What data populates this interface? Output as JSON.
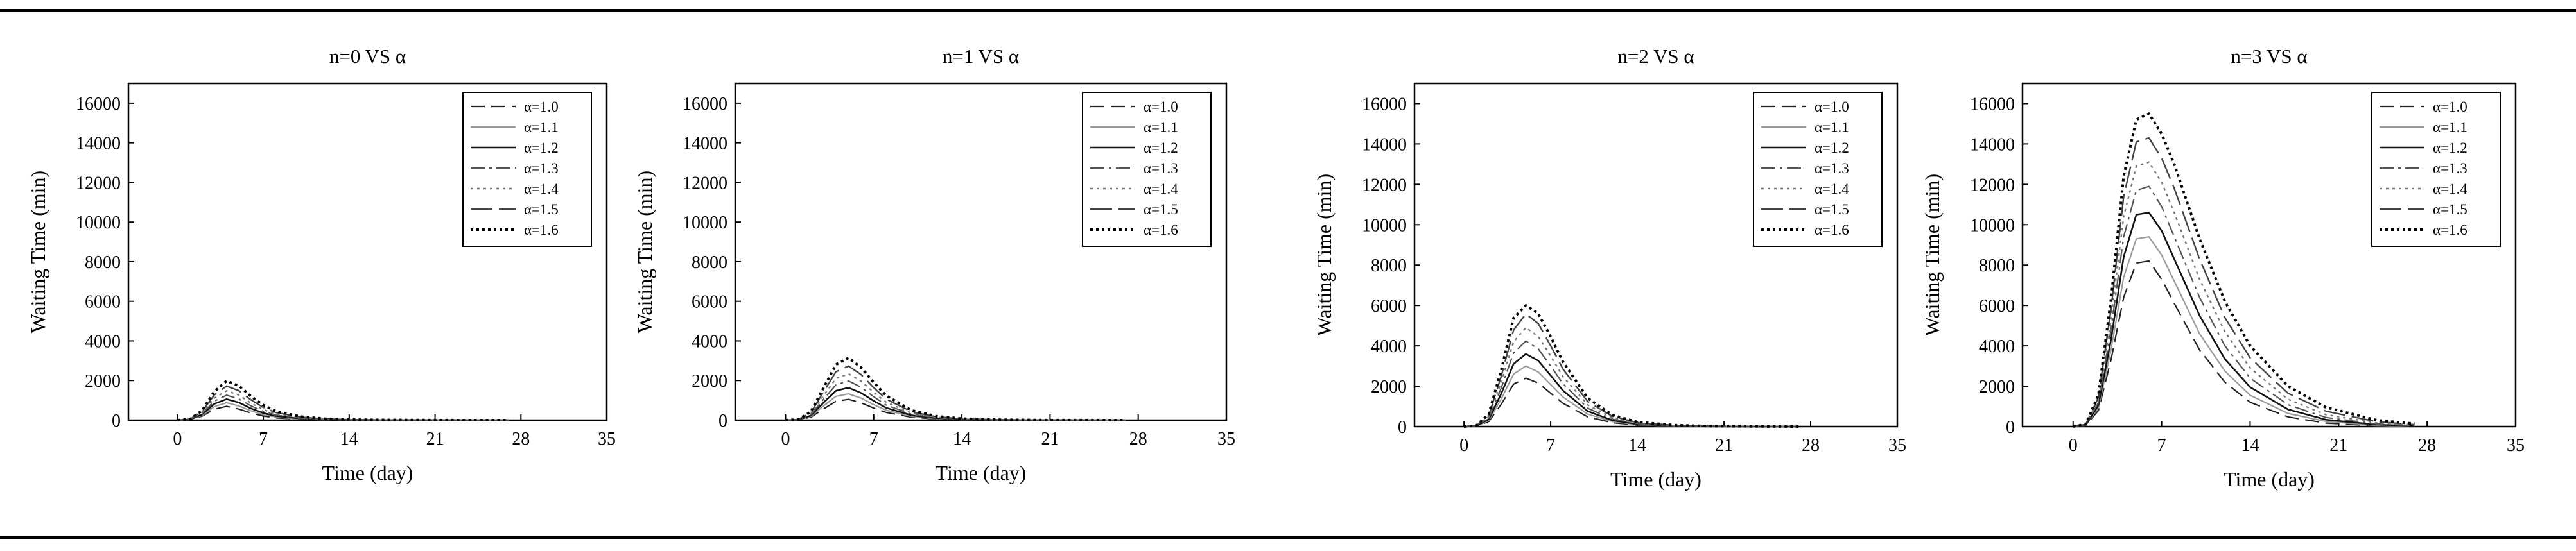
{
  "figure": {
    "panel_titles": [
      "n=0 VS α",
      "n=1 VS α",
      "n=2 VS α",
      "n=3 VS α"
    ],
    "xlabel": "Time (day)",
    "ylabel": "Waiting Time (min)"
  },
  "chart_data": [
    {
      "type": "line",
      "title": "n=0 VS α",
      "xlabel": "Time (day)",
      "ylabel": "Waiting Time (min)",
      "xlim": [
        -4,
        35
      ],
      "ylim": [
        0,
        17000
      ],
      "xticks": [
        0,
        7,
        14,
        21,
        28,
        35
      ],
      "yticks": [
        0,
        2000,
        4000,
        6000,
        8000,
        10000,
        12000,
        14000,
        16000
      ],
      "grid": false,
      "legend": "top-right",
      "x": [
        0,
        1,
        2,
        3,
        4,
        5,
        6,
        7,
        8,
        10,
        12,
        14,
        17,
        20,
        24,
        27
      ],
      "series": [
        {
          "name": "α=1.0",
          "values": [
            0,
            20,
            200,
            550,
            700,
            560,
            360,
            210,
            120,
            45,
            18,
            8,
            3,
            1,
            0,
            0
          ]
        },
        {
          "name": "α=1.1",
          "values": [
            0,
            25,
            240,
            680,
            880,
            720,
            470,
            280,
            160,
            60,
            24,
            10,
            4,
            1,
            0,
            0
          ]
        },
        {
          "name": "α=1.2",
          "values": [
            0,
            30,
            290,
            820,
            1060,
            890,
            590,
            360,
            210,
            80,
            32,
            14,
            5,
            2,
            0,
            0
          ]
        },
        {
          "name": "α=1.3",
          "values": [
            0,
            35,
            330,
            960,
            1260,
            1070,
            720,
            440,
            260,
            100,
            42,
            18,
            7,
            2,
            0,
            0
          ]
        },
        {
          "name": "α=1.4",
          "values": [
            0,
            40,
            380,
            1110,
            1480,
            1270,
            860,
            530,
            320,
            125,
            52,
            23,
            9,
            3,
            1,
            0
          ]
        },
        {
          "name": "α=1.5",
          "values": [
            0,
            45,
            430,
            1270,
            1720,
            1490,
            1020,
            640,
            390,
            155,
            65,
            28,
            11,
            4,
            1,
            0
          ]
        },
        {
          "name": "α=1.6",
          "values": [
            0,
            50,
            480,
            1440,
            1980,
            1740,
            1200,
            760,
            460,
            185,
            78,
            34,
            14,
            5,
            1,
            0
          ]
        }
      ]
    },
    {
      "type": "line",
      "title": "n=1 VS α",
      "xlabel": "Time (day)",
      "ylabel": "Waiting Time (min)",
      "xlim": [
        -4,
        35
      ],
      "ylim": [
        0,
        17000
      ],
      "xticks": [
        0,
        7,
        14,
        21,
        28,
        35
      ],
      "yticks": [
        0,
        2000,
        4000,
        6000,
        8000,
        10000,
        12000,
        14000,
        16000
      ],
      "grid": false,
      "legend": "top-right",
      "x": [
        0,
        1,
        2,
        3,
        4,
        5,
        6,
        7,
        8,
        10,
        12,
        14,
        17,
        20,
        24,
        27
      ],
      "series": [
        {
          "name": "α=1.0",
          "values": [
            0,
            15,
            150,
            560,
            950,
            1050,
            870,
            610,
            390,
            150,
            58,
            23,
            7,
            2,
            0,
            0
          ]
        },
        {
          "name": "α=1.1",
          "values": [
            0,
            18,
            190,
            710,
            1200,
            1330,
            1110,
            780,
            500,
            195,
            76,
            30,
            9,
            3,
            1,
            0
          ]
        },
        {
          "name": "α=1.2",
          "values": [
            0,
            22,
            230,
            870,
            1480,
            1640,
            1370,
            970,
            620,
            245,
            96,
            38,
            12,
            4,
            1,
            0
          ]
        },
        {
          "name": "α=1.3",
          "values": [
            0,
            26,
            275,
            1040,
            1780,
            1980,
            1660,
            1180,
            760,
            300,
            118,
            47,
            15,
            5,
            1,
            0
          ]
        },
        {
          "name": "α=1.4",
          "values": [
            0,
            30,
            320,
            1220,
            2100,
            2340,
            1970,
            1400,
            900,
            360,
            142,
            57,
            18,
            6,
            1,
            0
          ]
        },
        {
          "name": "α=1.5",
          "values": [
            0,
            34,
            370,
            1410,
            2440,
            2730,
            2300,
            1640,
            1060,
            425,
            168,
            68,
            22,
            7,
            1,
            0
          ]
        },
        {
          "name": "α=1.6",
          "values": [
            0,
            38,
            420,
            1610,
            2800,
            3140,
            2660,
            1900,
            1230,
            495,
            196,
            80,
            26,
            8,
            2,
            0
          ]
        }
      ]
    },
    {
      "type": "line",
      "title": "n=2 VS α",
      "xlabel": "Time (day)",
      "ylabel": "Waiting Time (min)",
      "xlim": [
        -4,
        35
      ],
      "ylim": [
        0,
        17000
      ],
      "xticks": [
        0,
        7,
        14,
        21,
        28,
        35
      ],
      "yticks": [
        0,
        2000,
        4000,
        6000,
        8000,
        10000,
        12000,
        14000,
        16000
      ],
      "grid": false,
      "legend": "top-right",
      "x": [
        0,
        1,
        2,
        3,
        4,
        5,
        6,
        7,
        8,
        10,
        12,
        14,
        17,
        20,
        24,
        27
      ],
      "series": [
        {
          "name": "α=1.0",
          "values": [
            0,
            20,
            250,
            1100,
            2100,
            2400,
            2150,
            1650,
            1150,
            480,
            190,
            75,
            22,
            6,
            1,
            0
          ]
        },
        {
          "name": "α=1.1",
          "values": [
            0,
            25,
            305,
            1360,
            2600,
            3000,
            2700,
            2080,
            1460,
            620,
            245,
            97,
            29,
            8,
            2,
            0
          ]
        },
        {
          "name": "α=1.2",
          "values": [
            0,
            30,
            365,
            1620,
            3100,
            3600,
            3260,
            2530,
            1780,
            760,
            305,
            120,
            36,
            10,
            2,
            0
          ]
        },
        {
          "name": "α=1.3",
          "values": [
            0,
            35,
            425,
            1900,
            3640,
            4240,
            3850,
            3000,
            2120,
            910,
            365,
            145,
            44,
            12,
            3,
            1
          ]
        },
        {
          "name": "α=1.4",
          "values": [
            0,
            40,
            490,
            2180,
            4200,
            4900,
            4460,
            3490,
            2470,
            1070,
            430,
            172,
            52,
            15,
            3,
            1
          ]
        },
        {
          "name": "α=1.5",
          "values": [
            0,
            45,
            555,
            2480,
            4780,
            5580,
            5100,
            4000,
            2840,
            1235,
            500,
            200,
            61,
            17,
            4,
            1
          ]
        },
        {
          "name": "α=1.6",
          "values": [
            0,
            50,
            625,
            2790,
            5380,
            6000,
            5600,
            4450,
            3200,
            1400,
            570,
            230,
            70,
            20,
            5,
            1
          ]
        }
      ]
    },
    {
      "type": "line",
      "title": "n=3 VS α",
      "xlabel": "Time (day)",
      "ylabel": "Waiting Time (min)",
      "xlim": [
        -4,
        35
      ],
      "ylim": [
        0,
        17000
      ],
      "xticks": [
        0,
        7,
        14,
        21,
        28,
        35
      ],
      "yticks": [
        0,
        2000,
        4000,
        6000,
        8000,
        10000,
        12000,
        14000,
        16000
      ],
      "grid": false,
      "legend": "top-right",
      "x": [
        0,
        1,
        2,
        3,
        4,
        5,
        6,
        7,
        8,
        10,
        12,
        14,
        17,
        20,
        24,
        27
      ],
      "series": [
        {
          "name": "α=1.0",
          "values": [
            0,
            60,
            800,
            3300,
            6400,
            8100,
            8200,
            7300,
            6100,
            3800,
            2200,
            1200,
            480,
            170,
            40,
            12
          ]
        },
        {
          "name": "α=1.1",
          "values": [
            0,
            70,
            930,
            3800,
            7400,
            9300,
            9400,
            8500,
            7200,
            4600,
            2750,
            1550,
            650,
            250,
            65,
            20
          ]
        },
        {
          "name": "α=1.2",
          "values": [
            0,
            80,
            1060,
            4300,
            8400,
            10500,
            10600,
            9700,
            8300,
            5500,
            3350,
            1950,
            850,
            340,
            95,
            32
          ]
        },
        {
          "name": "α=1.3",
          "values": [
            0,
            90,
            1190,
            4800,
            9400,
            11700,
            11900,
            10900,
            9400,
            6400,
            4000,
            2400,
            1080,
            450,
            130,
            48
          ]
        },
        {
          "name": "α=1.4",
          "values": [
            0,
            100,
            1320,
            5300,
            10400,
            12900,
            13100,
            12100,
            10600,
            7300,
            4700,
            2900,
            1350,
            590,
            180,
            70
          ]
        },
        {
          "name": "α=1.5",
          "values": [
            0,
            110,
            1450,
            5800,
            11400,
            14100,
            14300,
            13300,
            11800,
            8300,
            5400,
            3400,
            1650,
            760,
            240,
            100
          ]
        },
        {
          "name": "α=1.6",
          "values": [
            0,
            120,
            1580,
            6300,
            12400,
            15200,
            15500,
            14500,
            13000,
            9300,
            6200,
            4000,
            2000,
            950,
            320,
            140
          ]
        }
      ]
    }
  ]
}
